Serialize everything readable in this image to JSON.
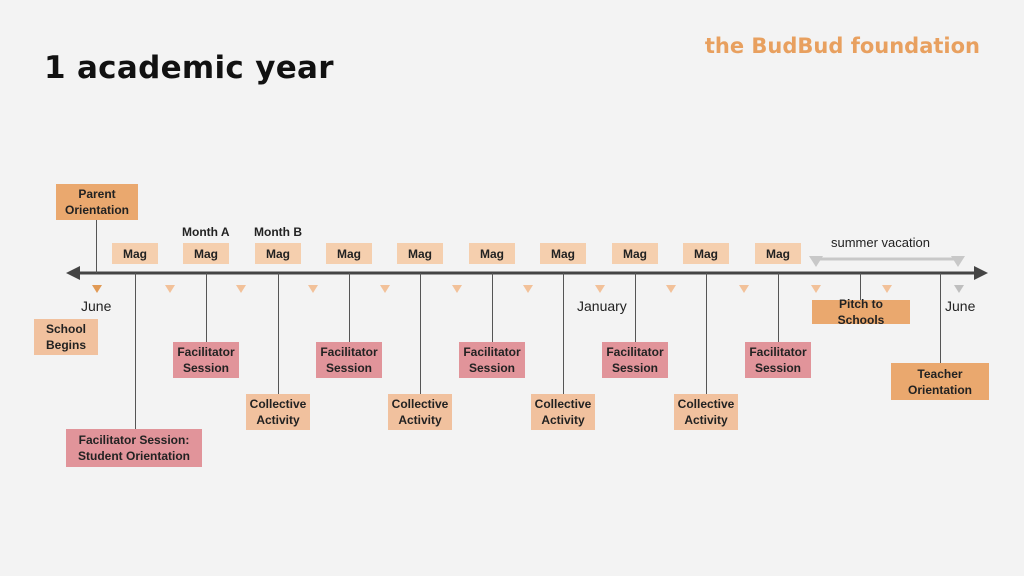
{
  "title": "1 academic year",
  "brand": "the BudBud foundation",
  "colors": {
    "orange_dark": "#eaa86e",
    "peach": "#f1c19e",
    "rose": "#e1949a",
    "brand_text": "#e8a05f",
    "axis": "#444444",
    "vacation_bracket": "#c8c8c8"
  },
  "axis_labels": {
    "start_june": "June",
    "january": "January",
    "end_june": "June",
    "summer_vacation": "summer vacation"
  },
  "month_labels": {
    "a": "Month A",
    "b": "Month B"
  },
  "mag_label": "Mag",
  "events": {
    "parent_orientation": "Parent Orientation",
    "school_begins": "School Begins",
    "facilitator_session": "Facilitator Session",
    "collective_activity": "Collective Activity",
    "student_orientation": "Facilitator Session: Student Orientation",
    "pitch_to_schools": "Pitch to Schools",
    "teacher_orientation": "Teacher Orientation"
  }
}
